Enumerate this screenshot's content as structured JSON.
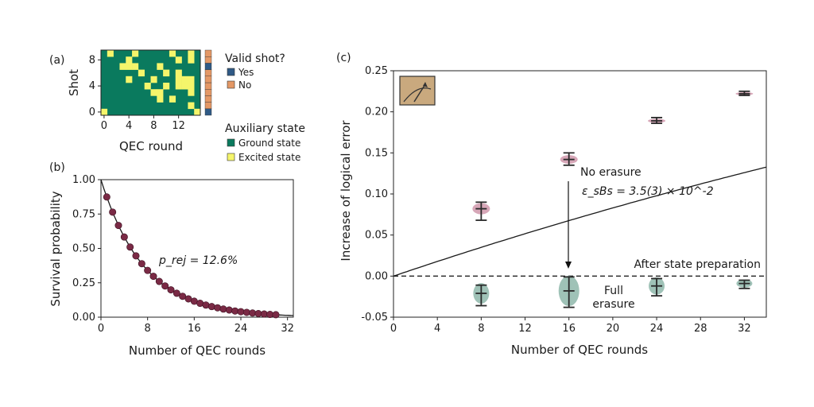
{
  "chart_data": [
    {
      "panel": "(a)",
      "type": "heatmap",
      "xlabel": "QEC round",
      "ylabel": "Shot",
      "xticks": [
        "0",
        "4",
        "8",
        "12"
      ],
      "yticks": [
        "0",
        "4",
        "8"
      ],
      "n_rounds": 16,
      "n_shots": 10,
      "excited_cells": [
        [
          0,
          0
        ],
        [
          15,
          0
        ],
        [
          14,
          1
        ],
        [
          9,
          2
        ],
        [
          11,
          2
        ],
        [
          8,
          3
        ],
        [
          9,
          3
        ],
        [
          14,
          3
        ],
        [
          7,
          4
        ],
        [
          10,
          4
        ],
        [
          12,
          4
        ],
        [
          13,
          4
        ],
        [
          14,
          4
        ],
        [
          4,
          5
        ],
        [
          8,
          5
        ],
        [
          12,
          5
        ],
        [
          13,
          5
        ],
        [
          14,
          5
        ],
        [
          6,
          6
        ],
        [
          10,
          6
        ],
        [
          12,
          6
        ],
        [
          3,
          7
        ],
        [
          4,
          7
        ],
        [
          5,
          7
        ],
        [
          9,
          7
        ],
        [
          4,
          8
        ],
        [
          12,
          8
        ],
        [
          14,
          8
        ],
        [
          1,
          9
        ],
        [
          5,
          9
        ],
        [
          11,
          9
        ],
        [
          14,
          9
        ]
      ],
      "valid_shots": [
        true,
        false,
        false,
        false,
        false,
        false,
        false,
        true,
        false,
        false
      ],
      "colors": {
        "ground": "#0a7a5e",
        "excited": "#f5f56b",
        "yes": "#2f5a86",
        "no": "#e49866"
      },
      "legend_valid": {
        "title": "Valid shot?",
        "items": [
          "Yes",
          "No"
        ]
      },
      "legend_state": {
        "title": "Auxiliary state",
        "items": [
          "Ground state",
          "Excited state"
        ]
      }
    },
    {
      "panel": "(b)",
      "type": "scatter",
      "xlabel": "Number of QEC rounds",
      "ylabel": "Survival probability",
      "xticks": [
        "0",
        "8",
        "16",
        "24",
        "32"
      ],
      "yticks": [
        "0.00",
        "0.25",
        "0.50",
        "0.75",
        "1.00"
      ],
      "xlim": [
        0,
        33
      ],
      "ylim": [
        0,
        1
      ],
      "x": [
        1,
        2,
        3,
        4,
        5,
        6,
        7,
        8,
        9,
        10,
        11,
        12,
        13,
        14,
        15,
        16,
        17,
        18,
        19,
        20,
        21,
        22,
        23,
        24,
        25,
        26,
        27,
        28,
        29,
        30
      ],
      "y": [
        0.874,
        0.764,
        0.667,
        0.583,
        0.51,
        0.446,
        0.389,
        0.34,
        0.297,
        0.26,
        0.227,
        0.199,
        0.174,
        0.152,
        0.133,
        0.116,
        0.101,
        0.088,
        0.077,
        0.068,
        0.059,
        0.052,
        0.045,
        0.04,
        0.035,
        0.03,
        0.026,
        0.023,
        0.02,
        0.018
      ],
      "fit_rate": 0.126,
      "annotation": "p_rej = 12.6%",
      "color": "#7a2a45"
    },
    {
      "panel": "(c)",
      "type": "scatter",
      "xlabel": "Number of QEC rounds",
      "ylabel": "Increase of logical error",
      "xticks": [
        "0",
        "4",
        "8",
        "12",
        "16",
        "20",
        "24",
        "28",
        "32"
      ],
      "yticks": [
        "-0.05",
        "0.00",
        "0.05",
        "0.10",
        "0.15",
        "0.20",
        "0.25"
      ],
      "xlim": [
        0,
        34
      ],
      "ylim": [
        -0.05,
        0.25
      ],
      "series": [
        {
          "name": "No erasure",
          "x": [
            8,
            16,
            24,
            32
          ],
          "y": [
            0.082,
            0.142,
            0.189,
            0.222
          ],
          "yerr_low": [
            0.068,
            0.135,
            0.186,
            0.22
          ],
          "yerr_high": [
            0.09,
            0.15,
            0.193,
            0.225
          ],
          "color": "#c98aa0"
        },
        {
          "name": "Full erasure",
          "x": [
            8,
            16,
            24,
            32
          ],
          "y": [
            -0.021,
            -0.018,
            -0.012,
            -0.009
          ],
          "yerr_low": [
            -0.036,
            -0.038,
            -0.024,
            -0.015
          ],
          "yerr_high": [
            -0.011,
            -0.001,
            -0.003,
            -0.005
          ],
          "color": "#7fae9f"
        }
      ],
      "fit_epsilon": 0.035,
      "annotation_fit": "ε_sBs = 3.5(3) × 10^-2",
      "baseline_label": "After state preparation",
      "label_no_erasure": "No erasure",
      "label_full_erasure_1": "Full",
      "label_full_erasure_2": "erasure",
      "no_erasure_color": "#7a2a45",
      "full_erasure_color": "#4c8a7a"
    }
  ]
}
